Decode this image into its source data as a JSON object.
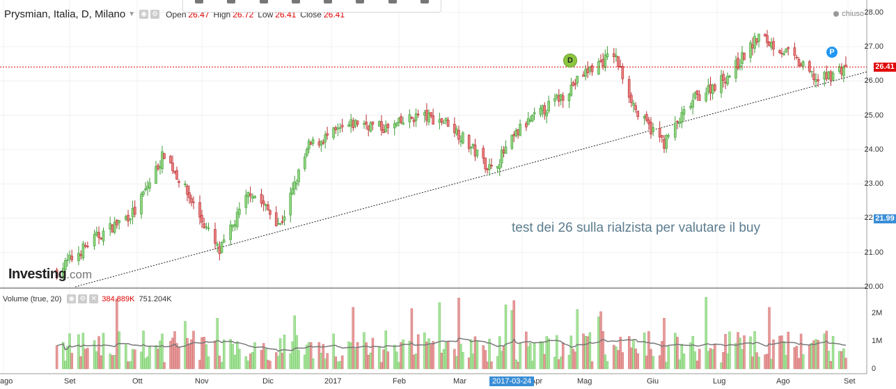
{
  "instrument": {
    "name": "Prysmian, Italia, D, Milano",
    "ohlc": [
      {
        "label": "Open",
        "value": "26.47"
      },
      {
        "label": "High",
        "value": "26.72"
      },
      {
        "label": "Low",
        "value": "26.41"
      },
      {
        "label": "Close",
        "value": "26.41"
      }
    ],
    "status": "chiuso"
  },
  "volume_legend": {
    "label": "Volume (true, 20)",
    "value1": "384.889K",
    "value2": "751.204K"
  },
  "logo": {
    "main": "Investing",
    "suffix": ".com"
  },
  "annotation": "test dei 26 sulla rialzista per valutare il buy",
  "markers": {
    "d": "D",
    "p": "P"
  },
  "price_tags": {
    "current": "26.41",
    "line": "21.99"
  },
  "price_axis": [
    "28.00",
    "27.00",
    "26.00",
    "25.00",
    "24.00",
    "23.00",
    "22.00",
    "21.00",
    "20.00"
  ],
  "volume_axis": [
    "2M",
    "1M",
    "0"
  ],
  "x_axis": [
    "ago",
    "Set",
    "Ott",
    "Nov",
    "Dic",
    "2017",
    "Feb",
    "Mar",
    "Apr",
    "Mag",
    "Giu",
    "Lug",
    "Ago",
    "Set"
  ],
  "crosshair_date": "2017-03-24",
  "colors": {
    "up": "#8fd67f",
    "down": "#e87e7e",
    "up_border": "#3c9a32",
    "down_border": "#b8292c",
    "line": "#e00000",
    "vol_up": "#a6e39a",
    "vol_down": "#e79a9a",
    "ma": "#777777",
    "trend": "#222222",
    "current_tag": "#e00000",
    "line_tag": "#3a8ed6",
    "status_dot": "#999999"
  },
  "chart_data": {
    "type": "candlestick",
    "price_range": [
      20,
      28.2
    ],
    "current_price": 26.41,
    "horizontal_line": 21.99,
    "trendline": [
      {
        "date": "2016-11-01",
        "price": 21.0
      },
      {
        "date": "2017-08-31",
        "price": 26.1
      }
    ],
    "price_anchors": [
      {
        "date": "2016-08-29",
        "price": 20.6
      },
      {
        "date": "2016-09-12",
        "price": 21.4
      },
      {
        "date": "2016-09-30",
        "price": 22.2
      },
      {
        "date": "2016-10-14",
        "price": 23.9
      },
      {
        "date": "2016-10-28",
        "price": 22.4
      },
      {
        "date": "2016-11-09",
        "price": 21.0
      },
      {
        "date": "2016-11-23",
        "price": 22.8
      },
      {
        "date": "2016-12-07",
        "price": 21.8
      },
      {
        "date": "2016-12-21",
        "price": 24.1
      },
      {
        "date": "2017-01-13",
        "price": 24.8
      },
      {
        "date": "2017-01-27",
        "price": 24.6
      },
      {
        "date": "2017-02-10",
        "price": 25.0
      },
      {
        "date": "2017-02-24",
        "price": 24.8
      },
      {
        "date": "2017-03-17",
        "price": 23.4
      },
      {
        "date": "2017-03-31",
        "price": 24.6
      },
      {
        "date": "2017-04-21",
        "price": 25.6
      },
      {
        "date": "2017-05-03",
        "price": 26.3
      },
      {
        "date": "2017-05-15",
        "price": 26.8
      },
      {
        "date": "2017-05-26",
        "price": 25.0
      },
      {
        "date": "2017-06-07",
        "price": 24.2
      },
      {
        "date": "2017-06-21",
        "price": 25.5
      },
      {
        "date": "2017-07-07",
        "price": 26.2
      },
      {
        "date": "2017-07-21",
        "price": 27.3
      },
      {
        "date": "2017-08-04",
        "price": 26.8
      },
      {
        "date": "2017-08-18",
        "price": 26.0
      },
      {
        "date": "2017-08-31",
        "price": 26.41
      }
    ],
    "volume_range": [
      0,
      2800000
    ],
    "volume_ma_period": 20,
    "x_labels": [
      "ago",
      "Set",
      "Ott",
      "Nov",
      "Dic",
      "2017",
      "Feb",
      "Mar",
      "Apr",
      "Mag",
      "Giu",
      "Lug",
      "Ago",
      "Set"
    ]
  }
}
